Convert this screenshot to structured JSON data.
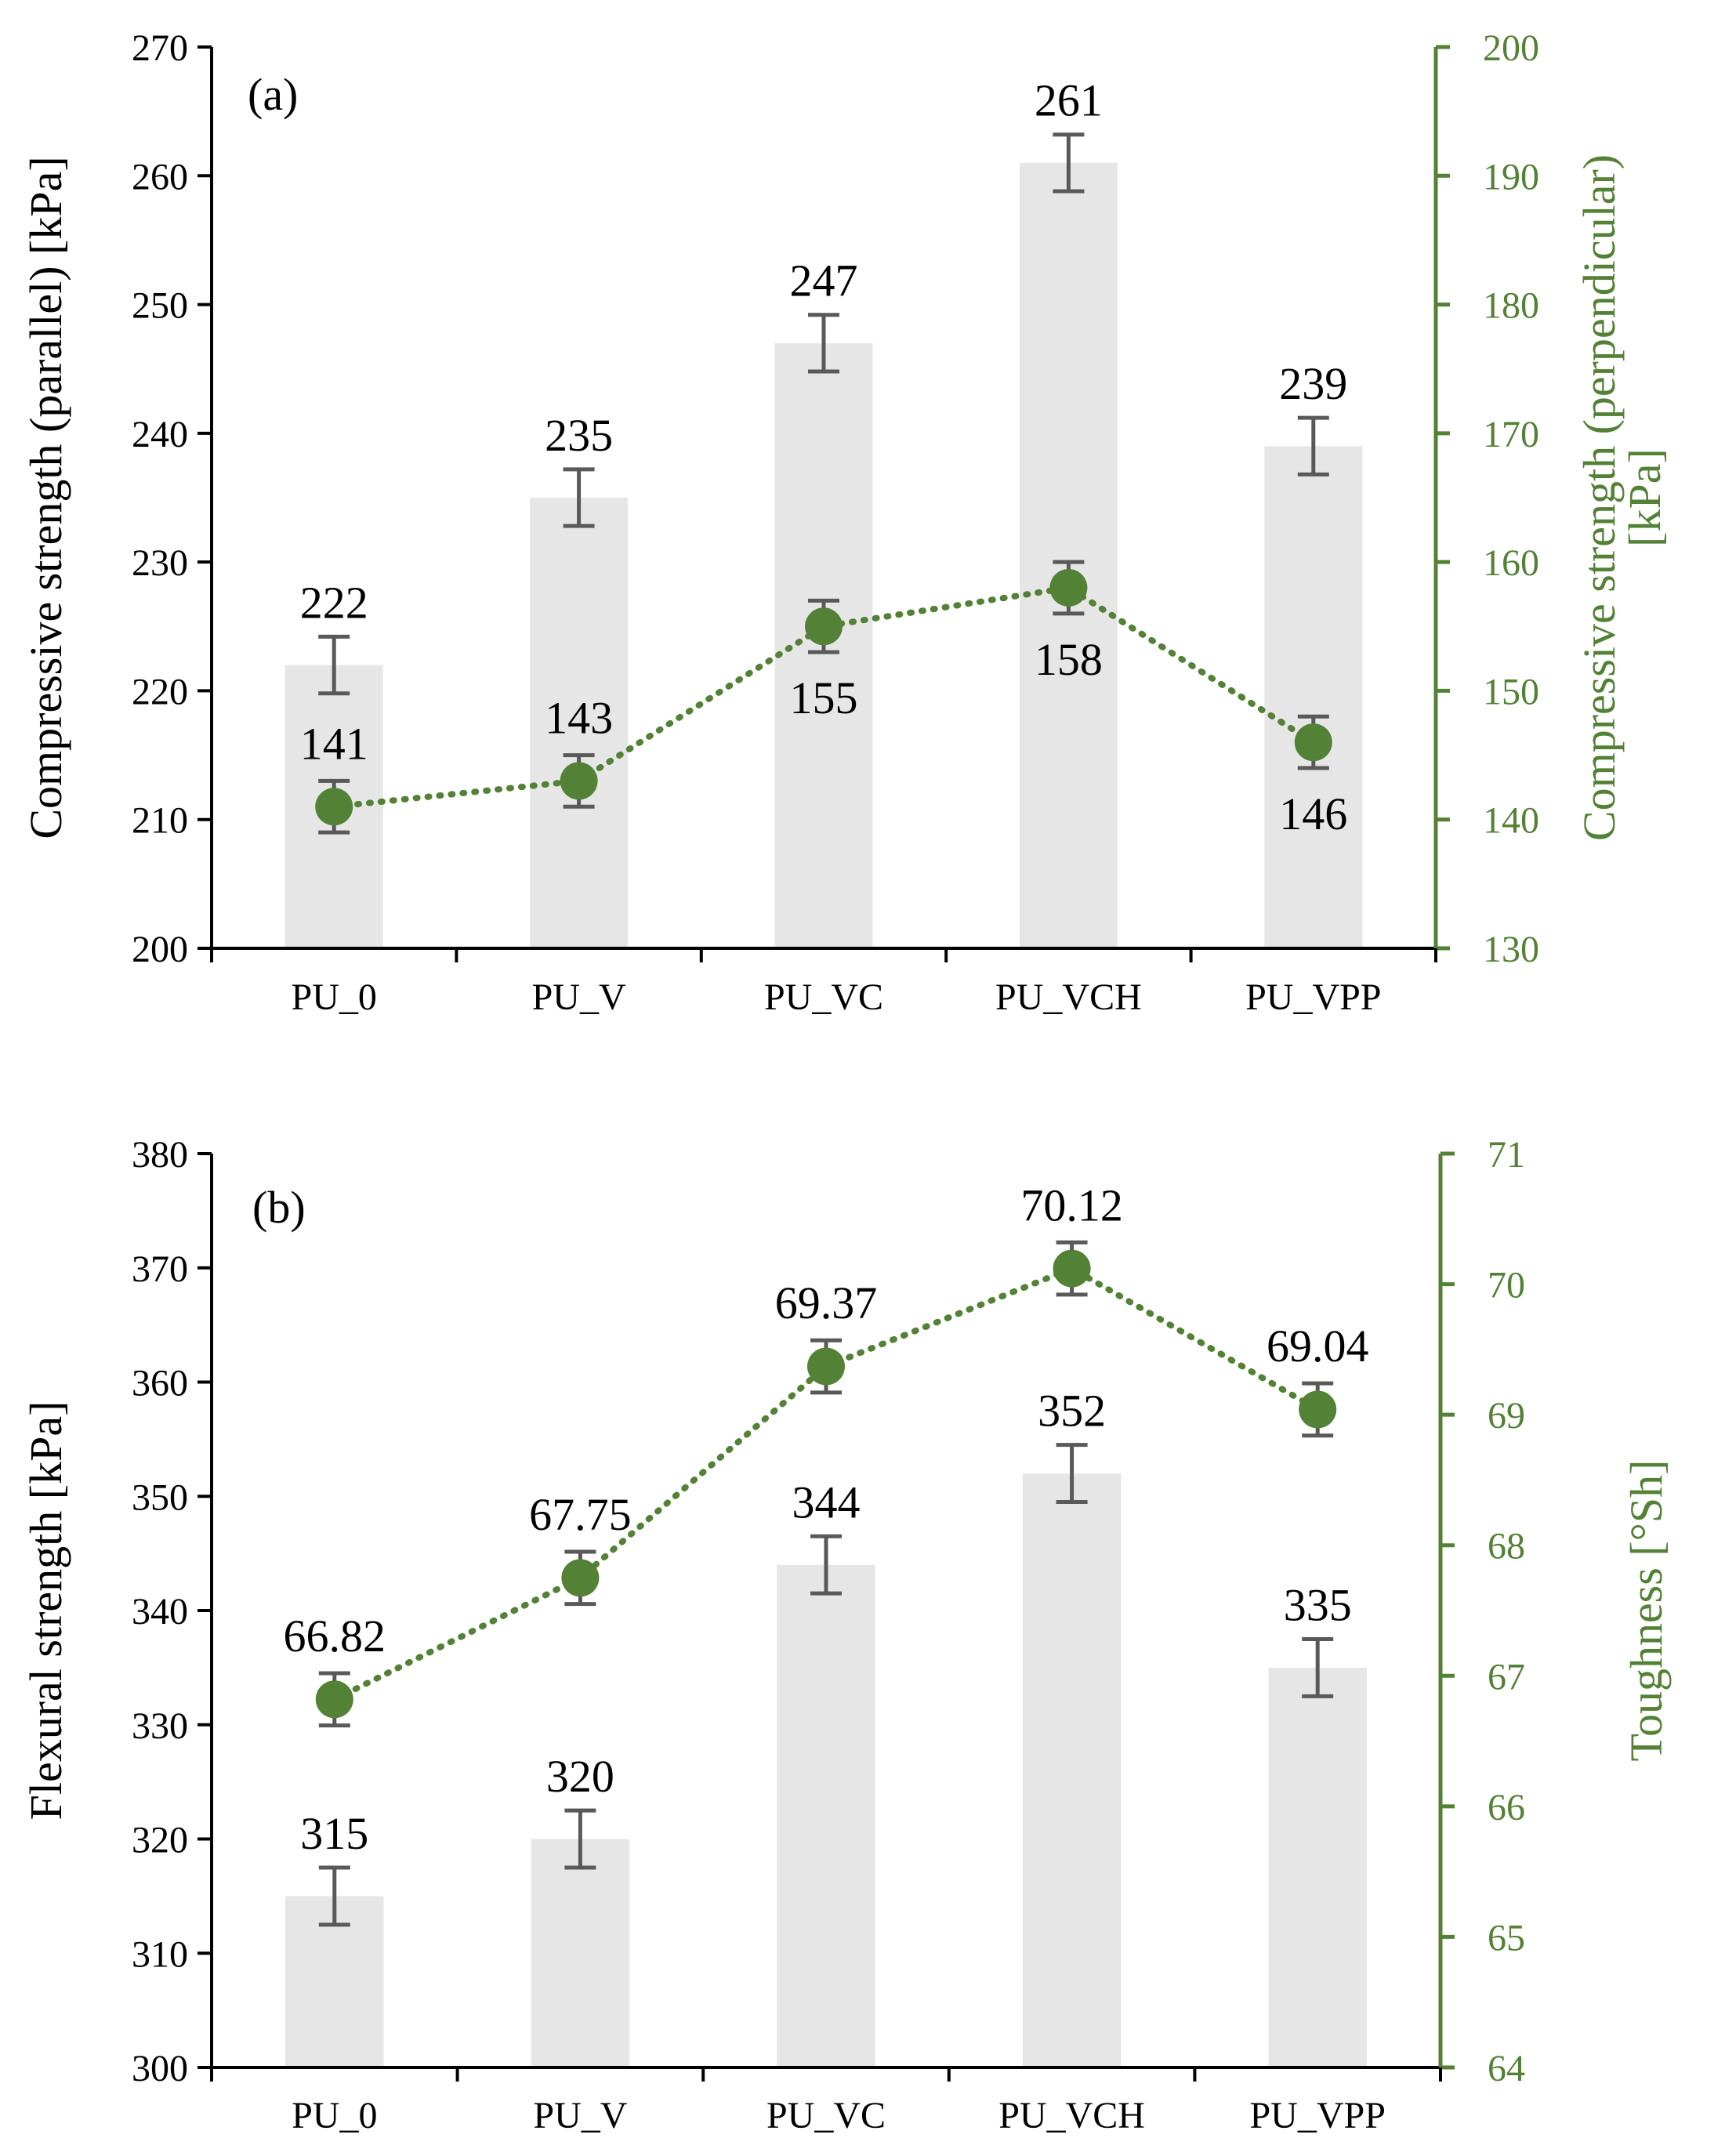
{
  "chart_data": [
    {
      "type": "bar",
      "panel_label": "(a)",
      "categories": [
        "PU_0",
        "PU_V",
        "PU_VC",
        "PU_VCH",
        "PU_VPP"
      ],
      "bar_series": {
        "values": [
          222,
          235,
          247,
          261,
          239
        ],
        "errors": [
          2.2,
          2.2,
          2.2,
          2.2,
          2.2
        ],
        "color": "#e6e6e6",
        "labels": [
          "222",
          "235",
          "247",
          "261",
          "239"
        ]
      },
      "line_series": {
        "values": [
          141,
          143,
          155,
          158,
          146
        ],
        "errors": [
          2,
          2,
          2,
          2,
          2
        ],
        "color": "#538135",
        "style": "dotted line with circle markers",
        "labels": [
          "141",
          "143",
          "155",
          "158",
          "146"
        ]
      },
      "ylabel": "Compressive strength (parallel) [kPa]",
      "y2label_lines": [
        "Compressive strength (perpendicular)",
        "[kPa]"
      ],
      "ylim": [
        200,
        270
      ],
      "y_ticks": [
        "200",
        "210",
        "220",
        "230",
        "240",
        "250",
        "260",
        "270"
      ],
      "y2lim": [
        130,
        200
      ],
      "y2_ticks": [
        "130",
        "140",
        "150",
        "160",
        "170",
        "180",
        "190",
        "200"
      ],
      "secondary_axis_color": "#538135",
      "grid": false
    },
    {
      "type": "bar",
      "panel_label": "(b)",
      "categories": [
        "PU_0",
        "PU_V",
        "PU_VC",
        "PU_VCH",
        "PU_VPP"
      ],
      "bar_series": {
        "values": [
          315,
          320,
          344,
          352,
          335
        ],
        "errors": [
          2.5,
          2.5,
          2.5,
          2.5,
          2.5
        ],
        "color": "#e6e6e6",
        "labels": [
          "315",
          "320",
          "344",
          "352",
          "335"
        ]
      },
      "line_series": {
        "values": [
          66.82,
          67.75,
          69.37,
          70.12,
          69.04
        ],
        "errors": [
          0.2,
          0.2,
          0.2,
          0.2,
          0.2
        ],
        "color": "#538135",
        "style": "dotted line with circle markers",
        "labels": [
          "66.82",
          "67.75",
          "69.37",
          "70.12",
          "69.04"
        ]
      },
      "ylabel": "Flexural strength [kPa]",
      "y2label_lines": [
        "Toughness [°Sh]"
      ],
      "ylim": [
        300,
        380
      ],
      "y_ticks": [
        "300",
        "310",
        "320",
        "330",
        "340",
        "350",
        "360",
        "370",
        "380"
      ],
      "y2lim": [
        64,
        71
      ],
      "y2_ticks": [
        "64",
        "65",
        "66",
        "67",
        "68",
        "69",
        "70",
        "71"
      ],
      "secondary_axis_color": "#538135",
      "grid": false
    }
  ]
}
